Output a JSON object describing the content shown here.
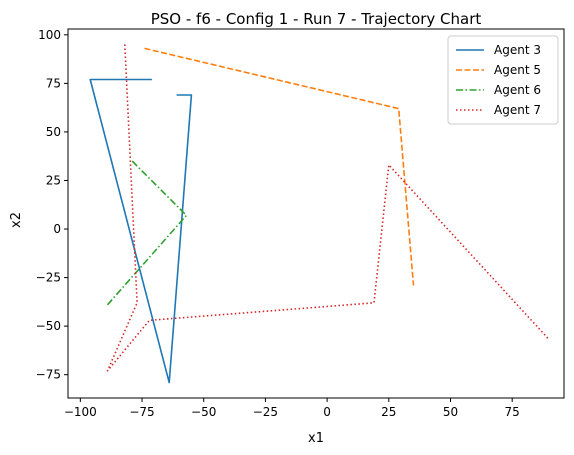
{
  "chart_data": {
    "type": "line",
    "title": "PSO - f6 - Config 1 - Run 7 - Trajectory Chart",
    "xlabel": "x1",
    "ylabel": "x2",
    "xlim": [
      -105,
      96
    ],
    "ylim": [
      -87,
      103
    ],
    "xticks": [
      -100,
      -75,
      -50,
      -25,
      0,
      25,
      50,
      75
    ],
    "yticks": [
      -75,
      -50,
      -25,
      0,
      25,
      50,
      75,
      100
    ],
    "grid": false,
    "legend_position": "top-right",
    "series": [
      {
        "name": "Agent 3",
        "color": "#1f77b4",
        "dash": "solid",
        "points": [
          [
            -71,
            77
          ],
          [
            -89,
            77
          ],
          [
            -96,
            77
          ],
          [
            -64,
            -79
          ],
          [
            -55,
            69
          ],
          [
            -61,
            69
          ]
        ]
      },
      {
        "name": "Agent 5",
        "color": "#ff7f0e",
        "dash": "dashed",
        "points": [
          [
            -74,
            93
          ],
          [
            29,
            62
          ],
          [
            35,
            -29
          ]
        ]
      },
      {
        "name": "Agent 6",
        "color": "#2ca02c",
        "dash": "dashdot",
        "points": [
          [
            -79,
            35
          ],
          [
            -57,
            7
          ],
          [
            -89,
            -39
          ]
        ]
      },
      {
        "name": "Agent 7",
        "color": "#d62728",
        "dash": "dotted",
        "points": [
          [
            -82,
            95
          ],
          [
            -77,
            -38
          ],
          [
            -89,
            -73
          ],
          [
            -72,
            -47
          ],
          [
            19,
            -38
          ],
          [
            25,
            33
          ],
          [
            90,
            -57
          ]
        ]
      }
    ]
  }
}
